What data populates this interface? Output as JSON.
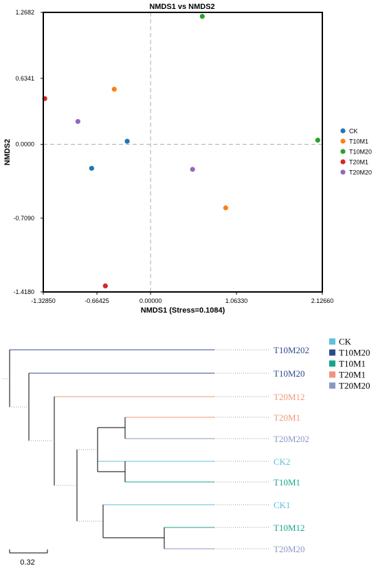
{
  "chart_data": [
    {
      "type": "scatter",
      "title": "NMDS1 vs NMDS2",
      "xlabel": "NMDS1 (Stress=0.1084)",
      "ylabel": "NMDS2",
      "xlim": [
        -1.3285,
        2.1266
      ],
      "ylim": [
        -1.418,
        1.2682
      ],
      "xticks": [
        -1.3285,
        -0.66425,
        0,
        1.0633,
        2.1266
      ],
      "xtick_labels": [
        "-1.32850",
        "-0.66425",
        "0.00000",
        "1.06330",
        "2.12660"
      ],
      "yticks": [
        1.2682,
        0.6341,
        0,
        -0.709,
        -1.418
      ],
      "ytick_labels": [
        "1.2682",
        "0.6341",
        "0.0000",
        "-0.7090",
        "-1.4180"
      ],
      "reference_lines": {
        "x": 0,
        "y": 0,
        "style": "dashed"
      },
      "legend_placement": "right",
      "series": [
        {
          "name": "CK",
          "color": "#1f77b4",
          "points": [
            {
              "x": -0.29,
              "y": 0.03
            },
            {
              "x": -0.73,
              "y": -0.23
            }
          ]
        },
        {
          "name": "T10M1",
          "color": "#ff7f0e",
          "points": [
            {
              "x": -0.45,
              "y": 0.53
            },
            {
              "x": 0.93,
              "y": -0.61
            }
          ]
        },
        {
          "name": "T10M20",
          "color": "#2ca02c",
          "points": [
            {
              "x": 0.64,
              "y": 1.23
            },
            {
              "x": 2.07,
              "y": 0.04
            }
          ]
        },
        {
          "name": "T20M1",
          "color": "#d62728",
          "points": [
            {
              "x": -1.31,
              "y": 0.44
            },
            {
              "x": -0.56,
              "y": -1.36
            }
          ]
        },
        {
          "name": "T20M20",
          "color": "#9467bd",
          "points": [
            {
              "x": -0.9,
              "y": 0.22
            },
            {
              "x": 0.52,
              "y": -0.24
            }
          ]
        }
      ]
    },
    {
      "type": "dendrogram",
      "scale_bar_label": "0.32",
      "legend_placement": "top-right",
      "legend": [
        {
          "name": "CK",
          "color": "#5bc0de"
        },
        {
          "name": "T10M20",
          "color": "#2e4a8b"
        },
        {
          "name": "T10M1",
          "color": "#17a589"
        },
        {
          "name": "T20M1",
          "color": "#f0957a"
        },
        {
          "name": "T20M20",
          "color": "#8a97c4"
        }
      ],
      "leaves": [
        {
          "label": "T10M202",
          "group": "T10M20"
        },
        {
          "label": "T10M20",
          "group": "T10M20"
        },
        {
          "label": "T20M12",
          "group": "T20M1"
        },
        {
          "label": "T20M1",
          "group": "T20M1"
        },
        {
          "label": "T20M202",
          "group": "T20M20"
        },
        {
          "label": "CK2",
          "group": "CK"
        },
        {
          "label": "T10M1",
          "group": "T10M1"
        },
        {
          "label": "CK1",
          "group": "CK"
        },
        {
          "label": "T10M12",
          "group": "T10M1"
        },
        {
          "label": "T20M20",
          "group": "T20M20"
        }
      ]
    }
  ]
}
